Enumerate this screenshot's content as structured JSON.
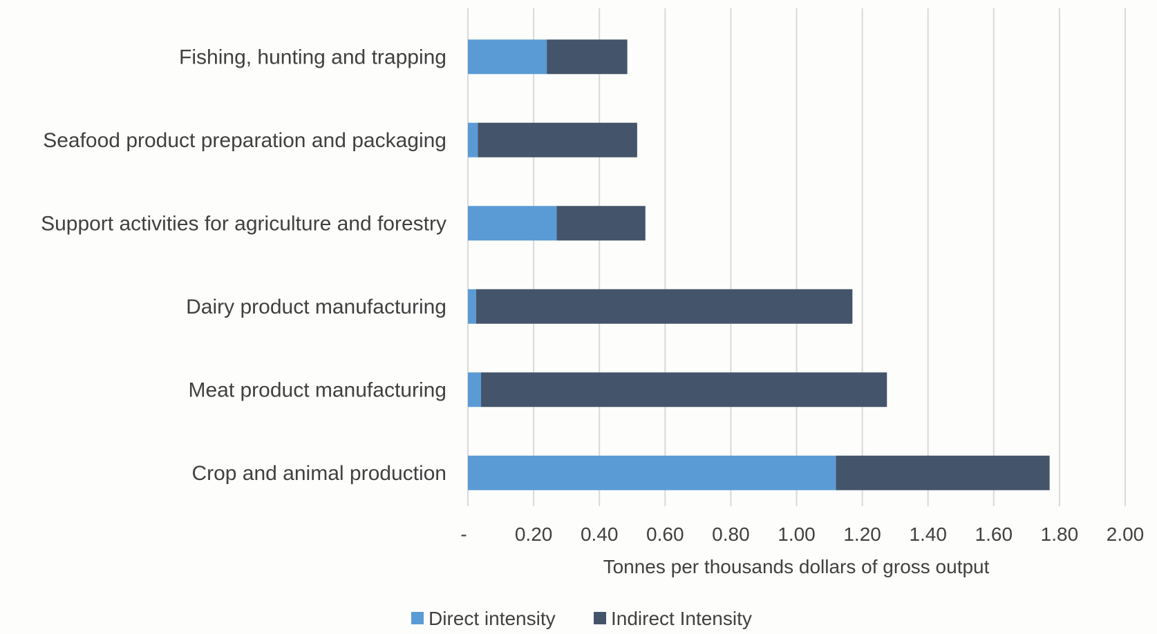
{
  "chart_data": {
    "type": "bar",
    "orientation": "horizontal",
    "stacked": true,
    "title": "",
    "categories": [
      "Fishing, hunting and trapping",
      "Seafood product preparation and packaging",
      "Support activities for agriculture and forestry",
      "Dairy product manufacturing",
      "Meat product manufacturing",
      "Crop and animal production"
    ],
    "series": [
      {
        "name": "Direct intensity",
        "color": "#5b9bd5",
        "values": [
          0.24,
          0.03,
          0.27,
          0.025,
          0.04,
          1.12
        ]
      },
      {
        "name": "Indirect Intensity",
        "color": "#44546a",
        "values": [
          0.245,
          0.485,
          0.27,
          1.145,
          1.235,
          0.65
        ]
      }
    ],
    "xlabel": "Tonnes per thousands dollars of gross output",
    "ylabel": "",
    "xlim": [
      0,
      2.0
    ],
    "xticks": [
      0,
      0.2,
      0.4,
      0.6,
      0.8,
      1.0,
      1.2,
      1.4,
      1.6,
      1.8,
      2.0
    ],
    "xtick_labels": [
      "-",
      "0.20",
      "0.40",
      "0.60",
      "0.80",
      "1.00",
      "1.20",
      "1.40",
      "1.60",
      "1.80",
      "2.00"
    ],
    "grid": "vertical",
    "legend_position": "bottom"
  }
}
